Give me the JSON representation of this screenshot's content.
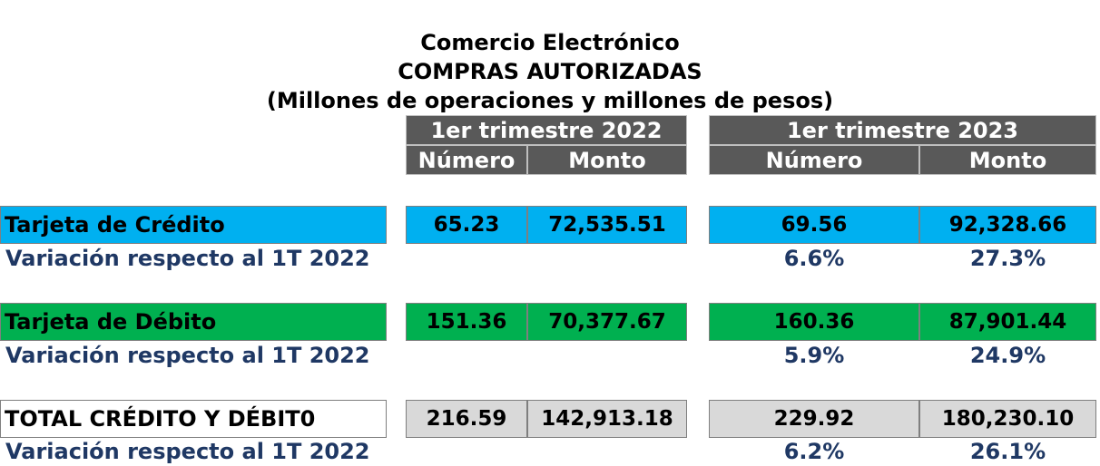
{
  "title": {
    "line1": "Comercio Electrónico",
    "line2": "COMPRAS AUTORIZADAS",
    "line3": "(Millones de operaciones y millones de pesos)"
  },
  "periods": [
    {
      "label": "1er trimestre 2022",
      "col_numero": "Número",
      "col_monto": "Monto"
    },
    {
      "label": "1er trimestre 2023",
      "col_numero": "Número",
      "col_monto": "Monto"
    }
  ],
  "rows": [
    {
      "label": "Tarjeta de Crédito",
      "color": "#00b0f0",
      "q2022": {
        "numero": "65.23",
        "monto": "72,535.51"
      },
      "q2023": {
        "numero": "69.56",
        "monto": "92,328.66"
      },
      "variation_label": "Variación respecto al 1T 2022",
      "variation": {
        "numero": "6.6%",
        "monto": "27.3%"
      }
    },
    {
      "label": "Tarjeta de Débito",
      "color": "#00b050",
      "q2022": {
        "numero": "151.36",
        "monto": "70,377.67"
      },
      "q2023": {
        "numero": "160.36",
        "monto": "87,901.44"
      },
      "variation_label": "Variación respecto al 1T 2022",
      "variation": {
        "numero": "5.9%",
        "monto": "24.9%"
      }
    },
    {
      "label": "TOTAL CRÉDITO Y DÉBIT0",
      "color": "#d9d9d9",
      "q2022": {
        "numero": "216.59",
        "monto": "142,913.18"
      },
      "q2023": {
        "numero": "229.92",
        "monto": "180,230.10"
      },
      "variation_label": "Variación respecto al 1T 2022",
      "variation": {
        "numero": "6.2%",
        "monto": "26.1%"
      }
    }
  ]
}
